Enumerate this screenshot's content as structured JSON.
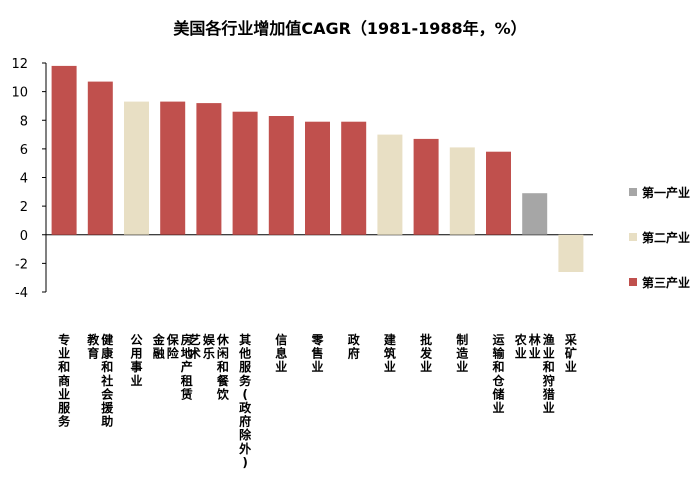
{
  "chart_data": {
    "type": "bar",
    "title": "美国各行业增加值CAGR（1981-1988年，%）",
    "ylim": [
      -4,
      12
    ],
    "yticks": [
      -4,
      -2,
      0,
      2,
      4,
      6,
      8,
      10,
      12
    ],
    "grid": false,
    "legend_position": "right",
    "legend": [
      {
        "name": "第一产业",
        "color": "#a6a6a6"
      },
      {
        "name": "第二产业",
        "color": "#e8dfc4"
      },
      {
        "name": "第三产业",
        "color": "#c0504d"
      }
    ],
    "categories": [
      "专业和商业服务",
      "教育  健康和社会援助",
      "公用事业",
      "金融  保险  房地产租赁",
      "艺术  娱乐  休闲和餐饮",
      "其他服务(政府除外)",
      "信息业",
      "零售业",
      "政府",
      "建筑业",
      "批发业",
      "制造业",
      "运输和仓储业",
      "农业  林业  渔业和狩猎业",
      "采矿业"
    ],
    "values": [
      11.8,
      10.7,
      9.3,
      9.3,
      9.2,
      8.6,
      8.3,
      7.9,
      7.9,
      7.0,
      6.7,
      6.1,
      5.8,
      2.9,
      -2.6
    ],
    "sector": [
      "第三产业",
      "第三产业",
      "第二产业",
      "第三产业",
      "第三产业",
      "第三产业",
      "第三产业",
      "第三产业",
      "第三产业",
      "第二产业",
      "第三产业",
      "第二产业",
      "第三产业",
      "第一产业",
      "第二产业"
    ]
  }
}
